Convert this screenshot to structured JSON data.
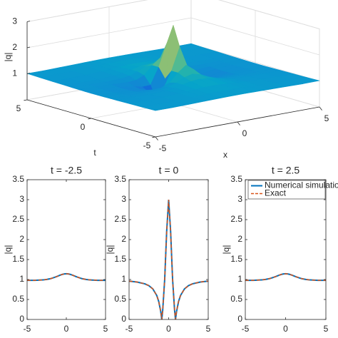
{
  "chart_data": [
    {
      "type": "surface",
      "x": [
        -5,
        -4,
        -3,
        -2,
        -1.5,
        -1,
        -0.5,
        0,
        0.5,
        1,
        1.5,
        2,
        3,
        4,
        5
      ],
      "y": [
        -5,
        -4,
        -3,
        -2,
        -1.5,
        -1,
        -0.5,
        0,
        0.5,
        1,
        1.5,
        2,
        3,
        4,
        5
      ],
      "z": [
        [
          1.01,
          1.005,
          1.014,
          1.025,
          1.03,
          1.035,
          1.038,
          1.039,
          1.038,
          1.035,
          1.03,
          1.025,
          1.014,
          1.005,
          1.01
        ],
        [
          0.995,
          1,
          1.011,
          1.029,
          1.04,
          1.05,
          1.057,
          1.06,
          1.057,
          1.05,
          1.04,
          1.029,
          1.011,
          1,
          0.995
        ],
        [
          0.986,
          0.989,
          1.001,
          1.029,
          1.052,
          1.076,
          1.095,
          1.103,
          1.095,
          1.076,
          1.052,
          1.029,
          1.001,
          0.989,
          0.986
        ],
        [
          0.975,
          0.971,
          0.973,
          1.004,
          1.046,
          1.112,
          1.181,
          1.213,
          1.181,
          1.112,
          1.046,
          1.004,
          0.973,
          0.971,
          0.975
        ],
        [
          0.97,
          0.96,
          0.95,
          0.964,
          1.011,
          1.116,
          1.263,
          1.342,
          1.263,
          1.116,
          1.011,
          0.964,
          0.95,
          0.96,
          0.97
        ],
        [
          0.965,
          0.949,
          0.923,
          0.895,
          0.915,
          1.048,
          1.374,
          1.612,
          1.374,
          1.048,
          0.915,
          0.895,
          0.923,
          0.949,
          0.965
        ],
        [
          0.962,
          0.941,
          0.901,
          0.809,
          0.733,
          0.745,
          1.374,
          2.236,
          1.374,
          0.745,
          0.733,
          0.809,
          0.901,
          0.941,
          0.962
        ],
        [
          0.96,
          0.938,
          0.892,
          0.765,
          0.6,
          0.2,
          1,
          3,
          1,
          0.2,
          0.6,
          0.765,
          0.892,
          0.938,
          0.96
        ],
        [
          0.962,
          0.941,
          0.901,
          0.809,
          0.733,
          0.745,
          1.374,
          2.236,
          1.374,
          0.745,
          0.733,
          0.809,
          0.901,
          0.941,
          0.962
        ],
        [
          0.965,
          0.949,
          0.923,
          0.895,
          0.915,
          1.048,
          1.374,
          1.612,
          1.374,
          1.048,
          0.915,
          0.895,
          0.923,
          0.949,
          0.965
        ],
        [
          0.97,
          0.96,
          0.95,
          0.964,
          1.011,
          1.116,
          1.263,
          1.342,
          1.263,
          1.116,
          1.011,
          0.964,
          0.95,
          0.96,
          0.97
        ],
        [
          0.975,
          0.971,
          0.973,
          1.004,
          1.046,
          1.112,
          1.181,
          1.213,
          1.181,
          1.112,
          1.046,
          1.004,
          0.973,
          0.971,
          0.975
        ],
        [
          0.986,
          0.989,
          1.001,
          1.029,
          1.052,
          1.076,
          1.095,
          1.103,
          1.095,
          1.076,
          1.052,
          1.029,
          1.001,
          0.989,
          0.986
        ],
        [
          0.995,
          1,
          1.011,
          1.029,
          1.04,
          1.05,
          1.057,
          1.06,
          1.057,
          1.05,
          1.04,
          1.029,
          1.011,
          1,
          0.995
        ],
        [
          1.01,
          1.005,
          1.014,
          1.025,
          1.03,
          1.035,
          1.038,
          1.039,
          1.038,
          1.035,
          1.03,
          1.025,
          1.014,
          1.005,
          1.01
        ]
      ],
      "xlim": [
        -5,
        5
      ],
      "ylim": [
        -5,
        5
      ],
      "zlim": [
        0,
        3
      ],
      "xticks": [
        -5,
        0,
        5
      ],
      "yticks": [
        -5,
        0,
        5
      ],
      "zticks": [
        1,
        2,
        3
      ],
      "xlabel": "x",
      "ylabel": "t",
      "zlabel": "|q|",
      "grid": true,
      "colormap": [
        "#352a87",
        "#0f5cdd",
        "#1481d6",
        "#06a4ca",
        "#2eb7a4",
        "#87bf77",
        "#d1bb59",
        "#fec832",
        "#f9fb0e"
      ]
    },
    {
      "type": "line",
      "title": "t = -2.5",
      "ylabel": "|q|",
      "x": [
        -5,
        -4,
        -3,
        -2.5,
        -2,
        -1.5,
        -1.25,
        -1,
        -0.866,
        -0.75,
        -0.5,
        -0.25,
        0,
        0.25,
        0.5,
        0.75,
        0.866,
        1,
        1.25,
        1.5,
        2,
        2.5,
        3,
        4,
        5
      ],
      "series": [
        {
          "color": "#0072bd",
          "linestyle": "-",
          "values": [
            0.981,
            0.981,
            0.99,
            1.002,
            1.022,
            1.054,
            1.073,
            1.093,
            1.104,
            1.113,
            1.129,
            1.14,
            1.144,
            1.14,
            1.129,
            1.113,
            1.104,
            1.093,
            1.073,
            1.054,
            1.022,
            1.002,
            0.99,
            0.981,
            0.981
          ]
        },
        {
          "color": "#d95319",
          "linestyle": "--",
          "values": [
            0.981,
            0.981,
            0.99,
            1.002,
            1.022,
            1.054,
            1.073,
            1.093,
            1.104,
            1.113,
            1.129,
            1.14,
            1.144,
            1.14,
            1.129,
            1.113,
            1.104,
            1.093,
            1.073,
            1.054,
            1.022,
            1.002,
            0.99,
            0.981,
            0.981
          ]
        }
      ],
      "xlim": [
        -5,
        5
      ],
      "xticks": [
        -5,
        0,
        5
      ],
      "ylim": [
        0,
        3.5
      ],
      "yticks": [
        0,
        0.5,
        1,
        1.5,
        2,
        2.5,
        3,
        3.5
      ]
    },
    {
      "type": "line",
      "title": "t = 0",
      "ylabel": "|q|",
      "x": [
        -5,
        -4,
        -3,
        -2.5,
        -2,
        -1.5,
        -1.25,
        -1,
        -0.866,
        -0.75,
        -0.5,
        -0.25,
        0,
        0.25,
        0.5,
        0.75,
        0.866,
        1,
        1.25,
        1.5,
        2,
        2.5,
        3,
        4,
        5
      ],
      "series": [
        {
          "color": "#0072bd",
          "linestyle": "-",
          "values": [
            0.96,
            0.938,
            0.892,
            0.846,
            0.765,
            0.6,
            0.448,
            0.2,
            0,
            0.231,
            1,
            2.2,
            3,
            2.2,
            1,
            0.231,
            0,
            0.2,
            0.448,
            0.6,
            0.765,
            0.846,
            0.892,
            0.938,
            0.96
          ]
        },
        {
          "color": "#d95319",
          "linestyle": "--",
          "values": [
            0.96,
            0.938,
            0.892,
            0.846,
            0.765,
            0.6,
            0.448,
            0.2,
            0,
            0.231,
            1,
            2.2,
            3,
            2.2,
            1,
            0.231,
            0,
            0.2,
            0.448,
            0.6,
            0.765,
            0.846,
            0.892,
            0.938,
            0.96
          ]
        }
      ],
      "xlim": [
        -5,
        5
      ],
      "xticks": [
        -5,
        0,
        5
      ],
      "ylim": [
        0,
        3.5
      ],
      "yticks": [
        0,
        0.5,
        1,
        1.5,
        2,
        2.5,
        3,
        3.5
      ]
    },
    {
      "type": "line",
      "title": "t = 2.5",
      "ylabel": "|q|",
      "x": [
        -5,
        -4,
        -3,
        -2.5,
        -2,
        -1.5,
        -1.25,
        -1,
        -0.866,
        -0.75,
        -0.5,
        -0.25,
        0,
        0.25,
        0.5,
        0.75,
        0.866,
        1,
        1.25,
        1.5,
        2,
        2.5,
        3,
        4,
        5
      ],
      "series": [
        {
          "name": "Numerical simulation",
          "color": "#0072bd",
          "linestyle": "-",
          "values": [
            0.981,
            0.981,
            0.99,
            1.002,
            1.022,
            1.054,
            1.073,
            1.093,
            1.104,
            1.113,
            1.129,
            1.14,
            1.144,
            1.14,
            1.129,
            1.113,
            1.104,
            1.093,
            1.073,
            1.054,
            1.022,
            1.002,
            0.99,
            0.981,
            0.981
          ]
        },
        {
          "name": "Exact",
          "color": "#d95319",
          "linestyle": "--",
          "values": [
            0.981,
            0.981,
            0.99,
            1.002,
            1.022,
            1.054,
            1.073,
            1.093,
            1.104,
            1.113,
            1.129,
            1.14,
            1.144,
            1.14,
            1.129,
            1.113,
            1.104,
            1.093,
            1.073,
            1.054,
            1.022,
            1.002,
            0.99,
            0.981,
            0.981
          ]
        }
      ],
      "xlim": [
        -5,
        5
      ],
      "xticks": [
        -5,
        0,
        5
      ],
      "ylim": [
        0,
        3.5
      ],
      "yticks": [
        0,
        0.5,
        1,
        1.5,
        2,
        2.5,
        3,
        3.5
      ],
      "legend": "northeast"
    }
  ]
}
